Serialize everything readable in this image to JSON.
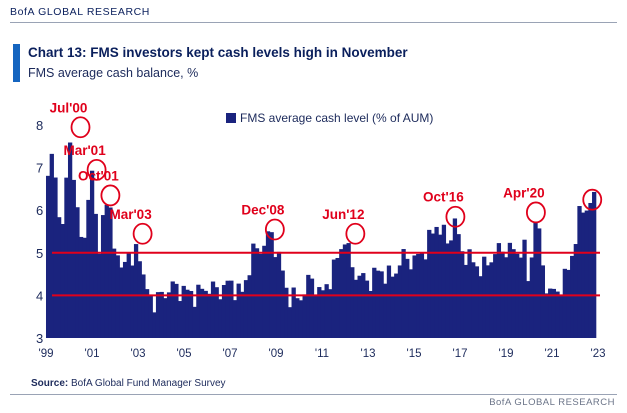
{
  "header": {
    "brand": "BofA GLOBAL RESEARCH"
  },
  "footer": {
    "source_label": "Source:",
    "source_text": "BofA Global Fund Manager Survey",
    "brand": "BofA GLOBAL RESEARCH"
  },
  "colors": {
    "bars": "#1a237e",
    "reference_lines": "#e0001b",
    "annotations": "#e0001b",
    "accent": "#1565c0"
  },
  "chart_data": {
    "type": "bar",
    "title": "Chart 13: FMS investors kept cash levels high in November",
    "subtitle": "FMS average cash balance, %",
    "xlabel": "",
    "ylabel": "",
    "ylim": [
      3,
      8
    ],
    "yticks": [
      "3",
      "4",
      "5",
      "6",
      "7",
      "8"
    ],
    "xticks": [
      "'99",
      "'01",
      "'03",
      "'05",
      "'07",
      "'09",
      "'11",
      "'13",
      "'15",
      "'17",
      "'19",
      "'21",
      "'23"
    ],
    "x_range": [
      1999,
      2023
    ],
    "legend": "top-center",
    "grid": false,
    "series": [
      {
        "name": "FMS average cash level (% of AUM)",
        "x": [
          1999.0,
          1999.25,
          1999.5,
          1999.75,
          2000.0,
          2000.25,
          2000.5,
          2000.75,
          2001.0,
          2001.25,
          2001.5,
          2001.75,
          2002.0,
          2002.25,
          2002.5,
          2002.75,
          2003.0,
          2003.25,
          2003.5,
          2003.75,
          2004.0,
          2004.5,
          2005.0,
          2005.5,
          2006.0,
          2006.5,
          2007.0,
          2007.5,
          2008.0,
          2008.5,
          2008.75,
          2009.0,
          2009.25,
          2009.5,
          2010.0,
          2010.5,
          2011.0,
          2011.5,
          2011.75,
          2012.0,
          2012.25,
          2012.5,
          2013.0,
          2013.5,
          2014.0,
          2014.5,
          2015.0,
          2015.5,
          2015.75,
          2016.0,
          2016.5,
          2016.75,
          2017.0,
          2017.5,
          2018.0,
          2018.5,
          2019.0,
          2019.5,
          2019.75,
          2020.0,
          2020.25,
          2020.5,
          2020.75,
          2021.0,
          2021.5,
          2021.75,
          2022.0,
          2022.25,
          2022.5,
          2022.75,
          2022.9
        ],
        "values": [
          6.4,
          7.3,
          6.3,
          5.4,
          7.9,
          6.5,
          5.2,
          5.8,
          6.9,
          5.1,
          5.8,
          6.3,
          5.0,
          4.5,
          5.2,
          4.6,
          5.4,
          4.2,
          4.0,
          3.8,
          4.0,
          4.2,
          4.1,
          4.0,
          4.2,
          4.1,
          4.3,
          4.0,
          5.0,
          5.2,
          5.5,
          5.1,
          4.6,
          4.0,
          3.9,
          4.4,
          4.0,
          4.6,
          5.0,
          5.4,
          4.7,
          4.5,
          4.3,
          4.6,
          4.4,
          4.9,
          4.8,
          5.1,
          5.4,
          5.7,
          5.2,
          5.8,
          5.1,
          4.8,
          4.6,
          5.0,
          5.1,
          5.0,
          5.2,
          4.2,
          5.9,
          5.1,
          4.2,
          4.0,
          4.3,
          4.7,
          5.3,
          6.0,
          6.1,
          6.2,
          6.3
        ]
      }
    ],
    "reference_lines": [
      5.0,
      4.0
    ],
    "annotations": [
      {
        "label": "Jul'00",
        "x": 2000.5,
        "y": 7.9
      },
      {
        "label": "Mar'01",
        "x": 2001.2,
        "y": 6.9
      },
      {
        "label": "Oct'01",
        "x": 2001.8,
        "y": 6.3
      },
      {
        "label": "Mar'03",
        "x": 2003.2,
        "y": 5.4
      },
      {
        "label": "Dec'08",
        "x": 2008.95,
        "y": 5.5
      },
      {
        "label": "Jun'12",
        "x": 2012.45,
        "y": 5.4
      },
      {
        "label": "Oct'16",
        "x": 2016.8,
        "y": 5.8
      },
      {
        "label": "Apr'20",
        "x": 2020.3,
        "y": 5.9
      },
      {
        "label": "",
        "x": 2022.75,
        "y": 6.2
      }
    ]
  }
}
